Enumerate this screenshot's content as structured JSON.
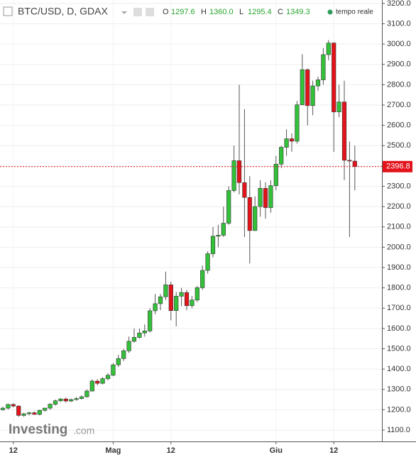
{
  "chart_data": {
    "type": "candlestick",
    "title": "BTC/USD, D, GDAX",
    "ohlc_header": [
      {
        "key": "O",
        "value": "1297.6"
      },
      {
        "key": "H",
        "value": "1360.0"
      },
      {
        "key": "L",
        "value": "1295.4"
      },
      {
        "key": "C",
        "value": "1349.3"
      }
    ],
    "realtime_label": "tempo reale",
    "watermark": {
      "brand": "Investing",
      "suffix": ".com"
    },
    "last_price": 2396.8,
    "up_color": "#33c13a",
    "down_color": "#e3131b",
    "categories": [
      null,
      null,
      "12",
      null,
      null,
      null,
      null,
      null,
      null,
      null,
      null,
      null,
      null,
      null,
      null,
      null,
      null,
      null,
      null,
      null,
      null,
      "Mag",
      null,
      null,
      null,
      null,
      null,
      null,
      null,
      null,
      null,
      null,
      "12",
      null,
      null,
      null,
      null,
      null,
      null,
      null,
      null,
      null,
      null,
      null,
      null,
      null,
      null,
      null,
      null,
      null,
      null,
      null,
      "Giu",
      null,
      null,
      null,
      null,
      null,
      null,
      null,
      null,
      null,
      null,
      "12",
      null,
      null,
      null,
      null
    ],
    "open": [
      1200,
      1208,
      1226,
      1218,
      1172,
      1180,
      1185,
      1177,
      1197,
      1208,
      1227,
      1244,
      1253,
      1243,
      1250,
      1255,
      1264,
      1292,
      1341,
      1330,
      1353,
      1370,
      1421,
      1452,
      1490,
      1537,
      1556,
      1578,
      1588,
      1687,
      1722,
      1756,
      1815,
      1688,
      1759,
      1777,
      1712,
      1740,
      1801,
      1886,
      1968,
      2054,
      2059,
      2118,
      2279,
      2426,
      2318,
      2245,
      2082,
      2200,
      2290,
      2195,
      2303,
      2409,
      2492,
      2534,
      2522,
      2701,
      2874,
      2697,
      2794,
      2824,
      2948,
      3005,
      2666,
      2715,
      2428,
      2424
    ],
    "high": [
      1215,
      1230,
      1232,
      1222,
      1185,
      1190,
      1192,
      1200,
      1210,
      1232,
      1250,
      1258,
      1260,
      1255,
      1262,
      1270,
      1300,
      1350,
      1350,
      1360,
      1380,
      1430,
      1470,
      1500,
      1560,
      1600,
      1600,
      1620,
      1700,
      1770,
      1770,
      1880,
      1830,
      1780,
      1800,
      1790,
      1760,
      1810,
      1910,
      1980,
      2100,
      2110,
      2200,
      2300,
      2500,
      2800,
      2680,
      2350,
      2250,
      2330,
      2320,
      2330,
      2450,
      2500,
      2580,
      2560,
      2720,
      2950,
      2880,
      2820,
      2840,
      2980,
      3020,
      3010,
      2800,
      2820,
      2520,
      2500
    ],
    "low": [
      1195,
      1200,
      1212,
      1165,
      1165,
      1172,
      1175,
      1172,
      1190,
      1200,
      1220,
      1238,
      1236,
      1238,
      1245,
      1250,
      1260,
      1290,
      1320,
      1325,
      1345,
      1365,
      1410,
      1440,
      1480,
      1530,
      1550,
      1560,
      1580,
      1670,
      1690,
      1740,
      1640,
      1610,
      1710,
      1690,
      1700,
      1730,
      1790,
      1870,
      1950,
      2000,
      2050,
      2110,
      2270,
      2260,
      2050,
      1920,
      2080,
      2150,
      2140,
      2170,
      2280,
      2390,
      2450,
      2470,
      2510,
      2700,
      2600,
      2650,
      2770,
      2800,
      2920,
      2470,
      2640,
      2330,
      2050,
      2280
    ],
    "close": [
      1208,
      1226,
      1218,
      1172,
      1180,
      1185,
      1177,
      1197,
      1208,
      1227,
      1244,
      1253,
      1243,
      1250,
      1255,
      1264,
      1292,
      1341,
      1330,
      1353,
      1370,
      1421,
      1452,
      1490,
      1537,
      1556,
      1578,
      1588,
      1687,
      1722,
      1756,
      1815,
      1688,
      1759,
      1777,
      1712,
      1740,
      1801,
      1886,
      1968,
      2054,
      2059,
      2118,
      2279,
      2426,
      2318,
      2245,
      2082,
      2200,
      2290,
      2195,
      2303,
      2409,
      2492,
      2534,
      2522,
      2701,
      2874,
      2697,
      2794,
      2824,
      2948,
      3005,
      2666,
      2715,
      2428,
      2424,
      2397
    ],
    "ylim": [
      1044,
      3217
    ],
    "yticks": [
      {
        "value": 1100,
        "label": "1100.0"
      },
      {
        "value": 1200,
        "label": "1200.0"
      },
      {
        "value": 1300,
        "label": "1300.0"
      },
      {
        "value": 1400,
        "label": "1400.0"
      },
      {
        "value": 1500,
        "label": "1500.0"
      },
      {
        "value": 1600,
        "label": "1600.0"
      },
      {
        "value": 1700,
        "label": "1700.0"
      },
      {
        "value": 1800,
        "label": "1800.0"
      },
      {
        "value": 1900,
        "label": "1900.0"
      },
      {
        "value": 2000,
        "label": "2000.0"
      },
      {
        "value": 2100,
        "label": "2100.0"
      },
      {
        "value": 2200,
        "label": "2200.0"
      },
      {
        "value": 2300,
        "label": "2300.0"
      },
      {
        "value": 2400,
        "label": "2400.0"
      },
      {
        "value": 2500,
        "label": "2500.0"
      },
      {
        "value": 2600,
        "label": "2600.0"
      },
      {
        "value": 2700,
        "label": "2700.0"
      },
      {
        "value": 2800,
        "label": "2800.0"
      },
      {
        "value": 2900,
        "label": "2900.0"
      },
      {
        "value": 3000,
        "label": "3000.0"
      },
      {
        "value": 3100,
        "label": "3100.0"
      },
      {
        "value": 3200,
        "label": "3200.0"
      }
    ],
    "grid": true
  }
}
